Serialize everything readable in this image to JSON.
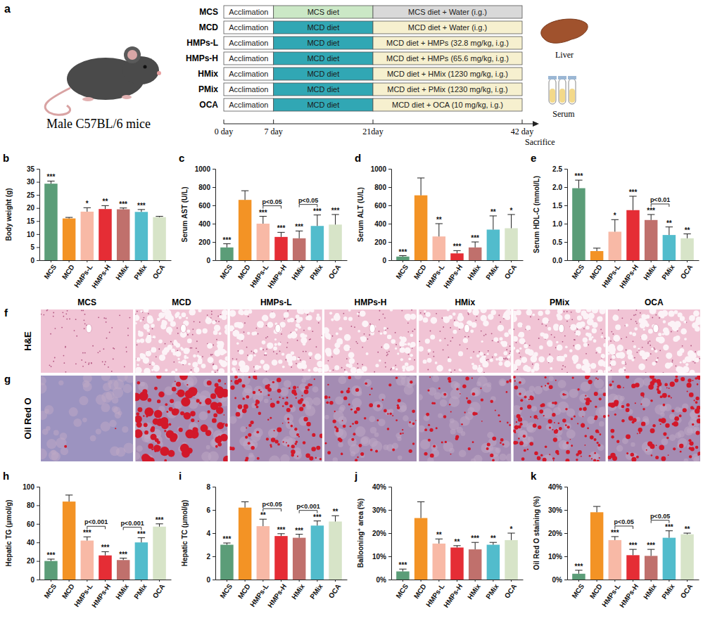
{
  "schematic": {
    "panel": "a",
    "subject": "Male C57BL/6 mice",
    "groups": [
      {
        "name": "MCS",
        "phases": [
          "Acclimation",
          "MCS diet",
          "MCS diet + Water (i.g.)"
        ],
        "colors": [
          "#ffffff",
          "#cbe8c6",
          "#d9d9d9"
        ]
      },
      {
        "name": "MCD",
        "phases": [
          "Acclimation",
          "MCD diet",
          "MCD diet + Water (i.g.)"
        ],
        "colors": [
          "#ffffff",
          "#31a7b4",
          "#f6f0cf"
        ]
      },
      {
        "name": "HMPs-L",
        "phases": [
          "Acclimation",
          "MCD diet",
          "MCD diet + HMPs (32.8 mg/kg, i.g.)"
        ],
        "colors": [
          "#ffffff",
          "#31a7b4",
          "#f6f0cf"
        ]
      },
      {
        "name": "HMPs-H",
        "phases": [
          "Acclimation",
          "MCD diet",
          "MCD diet + HMPs (65.6 mg/kg, i.g.)"
        ],
        "colors": [
          "#ffffff",
          "#31a7b4",
          "#f6f0cf"
        ]
      },
      {
        "name": "HMix",
        "phases": [
          "Acclimation",
          "MCD diet",
          "MCD diet + HMix (1230 mg/kg, i.g.)"
        ],
        "colors": [
          "#ffffff",
          "#31a7b4",
          "#f6f0cf"
        ]
      },
      {
        "name": "PMix",
        "phases": [
          "Acclimation",
          "MCD diet",
          "MCD diet + PMix (1230 mg/kg, i.g.)"
        ],
        "colors": [
          "#ffffff",
          "#31a7b4",
          "#f6f0cf"
        ]
      },
      {
        "name": "OCA",
        "phases": [
          "Acclimation",
          "MCD diet",
          "MCD diet + OCA (10 mg/kg, i.g.)"
        ],
        "colors": [
          "#ffffff",
          "#31a7b4",
          "#f6f0cf"
        ]
      }
    ],
    "timeline": [
      {
        "day": 0,
        "label": "0 day"
      },
      {
        "day": 7,
        "label": "7 day"
      },
      {
        "day": 21,
        "label": "21day"
      },
      {
        "day": 42,
        "label": "42 day"
      }
    ],
    "end_label": "Sacrifice",
    "samples": [
      "Liver",
      "Serum"
    ]
  },
  "micrographs": {
    "columns": [
      "MCS",
      "MCD",
      "HMPs-L",
      "HMPs-H",
      "HMix",
      "PMix",
      "OCA"
    ],
    "rows": [
      {
        "panel": "f",
        "label": "H&E"
      },
      {
        "panel": "g",
        "label": "Oil Red O"
      }
    ]
  },
  "chart_data": [
    {
      "type": "bar",
      "panel": "b",
      "y_label": "Body weight (g)",
      "categories": [
        "MCS",
        "MCD",
        "HMPs-L",
        "HMPs-H",
        "HMix",
        "PMix",
        "OCA"
      ],
      "colors": [
        "#5b9d78",
        "#f39325",
        "#f8b9a6",
        "#e52d35",
        "#c0706c",
        "#52bccc",
        "#d7e4c8"
      ],
      "values": [
        29.3,
        16.0,
        18.6,
        19.6,
        19.5,
        18.5,
        16.5
      ],
      "errors": [
        1.0,
        0.4,
        1.5,
        1.3,
        0.5,
        0.9,
        0.3
      ],
      "significance": [
        "***",
        null,
        "*",
        "**",
        "***",
        "***",
        null
      ],
      "comparisons": [],
      "ylim": [
        0,
        35
      ],
      "yticks": [
        0,
        5,
        10,
        15,
        20,
        25,
        30,
        35
      ]
    },
    {
      "type": "bar",
      "panel": "c",
      "y_label": "Serum AST (U/L)",
      "categories": [
        "MCS",
        "MCD",
        "HMPs-L",
        "HMPs-H",
        "HMix",
        "PMix",
        "OCA"
      ],
      "colors": [
        "#5b9d78",
        "#f39325",
        "#f8b9a6",
        "#e52d35",
        "#c0706c",
        "#52bccc",
        "#d7e4c8"
      ],
      "values": [
        140,
        660,
        400,
        255,
        240,
        375,
        390
      ],
      "errors": [
        40,
        100,
        80,
        50,
        80,
        120,
        110
      ],
      "significance": [
        "***",
        null,
        "***",
        "***",
        "***",
        "***",
        "***"
      ],
      "comparisons": [
        {
          "from": "HMPs-L",
          "to": "HMPs-H",
          "label": "p<0.05"
        },
        {
          "from": "HMix",
          "to": "PMix",
          "label": "p<0.05"
        }
      ],
      "ylim": [
        0,
        1000
      ],
      "yticks": [
        0,
        200,
        400,
        600,
        800,
        1000
      ]
    },
    {
      "type": "bar",
      "panel": "d",
      "y_label": "Serum ALT (U/L)",
      "categories": [
        "MCS",
        "MCD",
        "HMPs-L",
        "HMPs-H",
        "HMix",
        "PMix",
        "OCA"
      ],
      "colors": [
        "#5b9d78",
        "#f39325",
        "#f8b9a6",
        "#e52d35",
        "#c0706c",
        "#52bccc",
        "#d7e4c8"
      ],
      "values": [
        40,
        710,
        260,
        75,
        140,
        335,
        350
      ],
      "errors": [
        10,
        190,
        140,
        30,
        60,
        150,
        150
      ],
      "significance": [
        "***",
        null,
        "**",
        "***",
        "***",
        "**",
        "*"
      ],
      "comparisons": [],
      "ylim": [
        0,
        1000
      ],
      "yticks": [
        0,
        200,
        400,
        600,
        800,
        1000
      ]
    },
    {
      "type": "bar",
      "panel": "e",
      "y_label": "Serum HDL-C (mmol/L)",
      "categories": [
        "MCS",
        "MCD",
        "HMPs-L",
        "HMPs-H",
        "HMix",
        "PMix",
        "OCA"
      ],
      "colors": [
        "#5b9d78",
        "#f39325",
        "#f8b9a6",
        "#e52d35",
        "#c0706c",
        "#52bccc",
        "#d7e4c8"
      ],
      "values": [
        1.97,
        0.25,
        0.78,
        1.37,
        1.1,
        0.69,
        0.6
      ],
      "errors": [
        0.22,
        0.08,
        0.33,
        0.38,
        0.15,
        0.22,
        0.12
      ],
      "significance": [
        "***",
        null,
        "*",
        "***",
        "***",
        "**",
        "**"
      ],
      "comparisons": [
        {
          "from": "HMix",
          "to": "PMix",
          "label": "p<0.01"
        }
      ],
      "ylim": [
        0,
        2.5
      ],
      "yticks": [
        {
          "value": 0,
          "label": "0.0"
        },
        0.5,
        {
          "value": 1,
          "label": "1.0"
        },
        1.5,
        {
          "value": 2,
          "label": "2.0"
        },
        2.5
      ]
    },
    {
      "type": "bar",
      "panel": "h",
      "y_label": "Hepatic TG (μmol/g)",
      "categories": [
        "MCS",
        "MCD",
        "HMPs-L",
        "HMPs-H",
        "HMix",
        "PMix",
        "OCA"
      ],
      "colors": [
        "#5b9d78",
        "#f39325",
        "#f8b9a6",
        "#e52d35",
        "#c0706c",
        "#52bccc",
        "#d7e4c8"
      ],
      "values": [
        20,
        84,
        42,
        26,
        21,
        40,
        57
      ],
      "errors": [
        2,
        7,
        4,
        4,
        2,
        5,
        3
      ],
      "significance": [
        "***",
        null,
        "***",
        "***",
        "***",
        "***",
        "***"
      ],
      "comparisons": [
        {
          "from": "HMPs-L",
          "to": "HMPs-H",
          "label": "p<0.001"
        },
        {
          "from": "HMix",
          "to": "PMix",
          "label": "p<0.001"
        }
      ],
      "ylim": [
        0,
        100
      ],
      "yticks": [
        0,
        20,
        40,
        60,
        80,
        100
      ]
    },
    {
      "type": "bar",
      "panel": "i",
      "y_label": "Hepatic TC (μmol/g)",
      "categories": [
        "MCS",
        "MCD",
        "HMPs-L",
        "HMPs-H",
        "HMix",
        "PMix",
        "OCA"
      ],
      "colors": [
        "#5b9d78",
        "#f39325",
        "#f8b9a6",
        "#e52d35",
        "#c0706c",
        "#52bccc",
        "#d7e4c8"
      ],
      "values": [
        3.0,
        6.2,
        4.6,
        3.75,
        3.6,
        4.65,
        5.0
      ],
      "errors": [
        0.15,
        0.5,
        0.6,
        0.2,
        0.3,
        0.4,
        0.5
      ],
      "significance": [
        "***",
        null,
        "**",
        "***",
        "***",
        "***",
        "**"
      ],
      "comparisons": [
        {
          "from": "HMPs-L",
          "to": "HMPs-H",
          "label": "p<0.05"
        },
        {
          "from": "HMix",
          "to": "PMix",
          "label": "p<0.001"
        }
      ],
      "ylim": [
        0,
        8
      ],
      "yticks": [
        0,
        2,
        4,
        6,
        8
      ]
    },
    {
      "type": "bar",
      "panel": "j",
      "y_label": "Ballooning⁺ area (%)",
      "categories": [
        "MCS",
        "MCD",
        "HMPs-L",
        "HMPs-H",
        "HMix",
        "PMix",
        "OCA"
      ],
      "colors": [
        "#5b9d78",
        "#f39325",
        "#f8b9a6",
        "#e52d35",
        "#c0706c",
        "#52bccc",
        "#d7e4c8"
      ],
      "values": [
        3.5,
        26.5,
        15.5,
        13.8,
        13,
        15,
        17
      ],
      "errors": [
        1,
        7,
        2,
        0.8,
        3,
        1,
        3
      ],
      "significance": [
        "***",
        null,
        "**",
        "**",
        "***",
        "**",
        "*"
      ],
      "comparisons": [],
      "ylim": [
        0,
        40
      ],
      "yticks": [
        {
          "value": 0,
          "label": "0%"
        },
        {
          "value": 10,
          "label": "10%"
        },
        {
          "value": 20,
          "label": "20%"
        },
        {
          "value": 30,
          "label": "30%"
        },
        {
          "value": 40,
          "label": "40%"
        }
      ]
    },
    {
      "type": "bar",
      "panel": "k",
      "y_label": "Oil Red O staining (%)",
      "categories": [
        "MCS",
        "MCD",
        "HMPs-L",
        "HMPs-H",
        "HMix",
        "PMix",
        "OCA"
      ],
      "colors": [
        "#5b9d78",
        "#f39325",
        "#f8b9a6",
        "#e52d35",
        "#c0706c",
        "#52bccc",
        "#d7e4c8"
      ],
      "values": [
        2.5,
        29,
        17,
        10.5,
        10.2,
        18,
        19.5
      ],
      "errors": [
        1.5,
        2.5,
        1.5,
        2.5,
        2.8,
        3,
        0.5
      ],
      "significance": [
        "***",
        null,
        "***",
        "***",
        "***",
        "***",
        "**"
      ],
      "comparisons": [
        {
          "from": "HMPs-L",
          "to": "HMPs-H",
          "label": "p<0.05"
        },
        {
          "from": "HMix",
          "to": "PMix",
          "label": "p<0.05"
        }
      ],
      "ylim": [
        0,
        40
      ],
      "yticks": [
        {
          "value": 0,
          "label": "0%"
        },
        {
          "value": 10,
          "label": "10%"
        },
        {
          "value": 20,
          "label": "20%"
        },
        {
          "value": 30,
          "label": "30%"
        },
        {
          "value": 40,
          "label": "40%"
        }
      ]
    }
  ]
}
